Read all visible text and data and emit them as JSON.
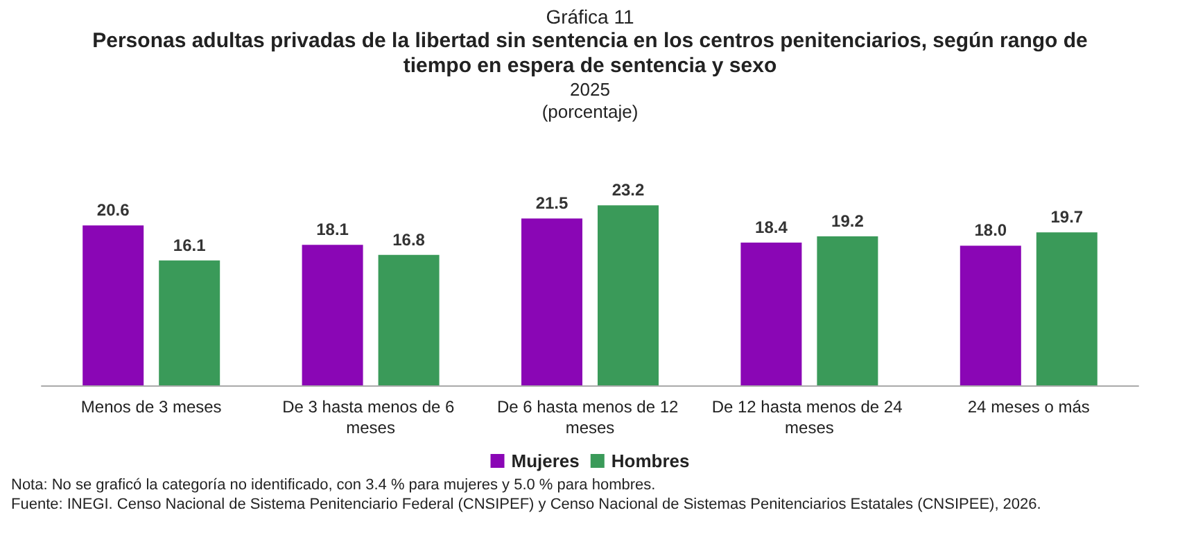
{
  "chart_data": {
    "type": "bar",
    "title": "Personas adultas privadas de la libertad sin sentencia en los centros penitenciarios, según rango de tiempo en espera de sentencia y sexo",
    "subtitle": "2025",
    "ylabel": "(porcentaje)",
    "categories": [
      "Menos de 3 meses",
      "De 3 hasta menos de 6 meses",
      "De 6 hasta menos de 12 meses",
      "De 12 hasta menos de 24 meses",
      "24 meses o más"
    ],
    "series": [
      {
        "name": "Mujeres",
        "color": "#8a06b5",
        "values": [
          20.6,
          18.1,
          21.5,
          18.4,
          18.0
        ],
        "value_labels": [
          "20.6",
          "18.1",
          "21.5",
          "18.4",
          "18.0"
        ]
      },
      {
        "name": "Hombres",
        "color": "#3a9a59",
        "values": [
          16.1,
          16.8,
          23.2,
          19.2,
          19.7
        ],
        "value_labels": [
          "16.1",
          "16.8",
          "23.2",
          "19.2",
          "19.7"
        ]
      }
    ],
    "legend": "bottom",
    "annotations": [
      "Gráfica 11",
      "Nota:    No se graficó la categoría no identificado, con 3.4 % para mujeres y 5.0 % para hombres.",
      "Fuente:  INEGI. Censo Nacional de Sistema Penitenciario Federal (CNSIPEF) y Censo Nacional de Sistemas Penitenciarios Estatales (CNSIPEE), 2026."
    ]
  }
}
